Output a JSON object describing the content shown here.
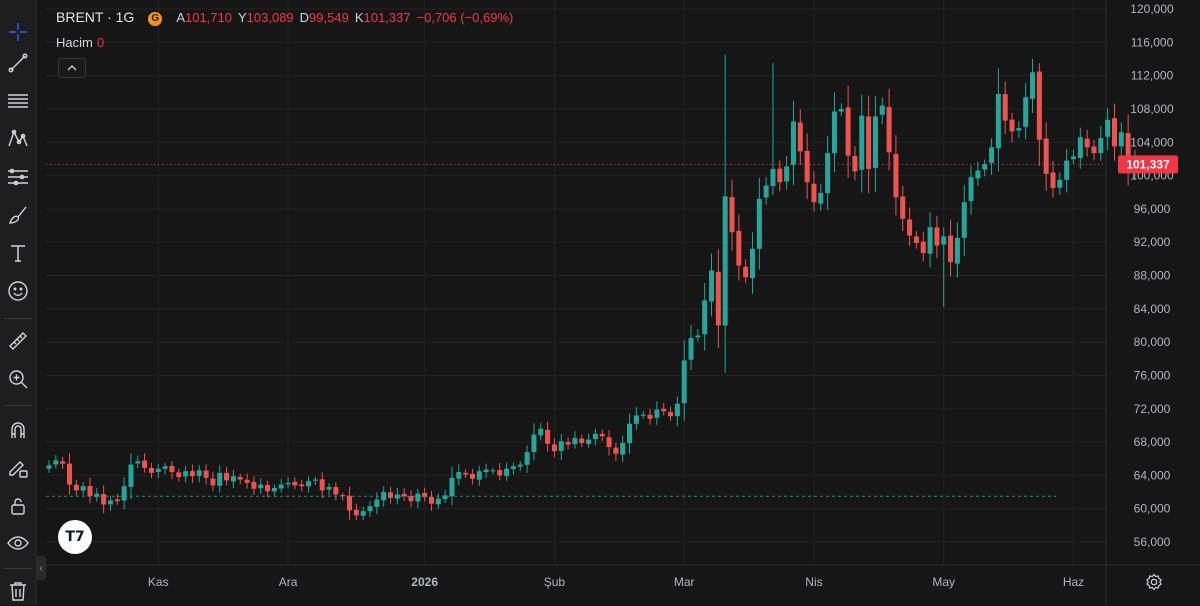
{
  "legend": {
    "symbol": "BRENT · 1G",
    "open_label": "A",
    "open_value": "101,710",
    "high_label": "Y",
    "high_value": "103,089",
    "low_label": "D",
    "low_value": "99,549",
    "close_label": "K",
    "close_value": "101,337",
    "change": "−0,706 (−0,69%)"
  },
  "volume": {
    "label": "Hacim",
    "value": "0"
  },
  "icons": {
    "exchange": "G-icon",
    "toolbar": [
      "crosshair-icon",
      "trend-line-icon",
      "fib-icon",
      "pattern-icon",
      "forecast-icon",
      "brush-icon",
      "text-icon",
      "emoji-icon",
      "ruler-icon",
      "zoom-icon",
      "magnet-icon",
      "lock-draw-icon",
      "lock-icon",
      "eye-icon",
      "trash-icon"
    ]
  },
  "colors": {
    "up": "#26a69a",
    "down": "#ef5350",
    "price_line": "#f23645",
    "background": "#161616"
  },
  "logo_text": "T7",
  "chart_data": {
    "type": "candlestick",
    "ylim": [
      53000,
      121000
    ],
    "y_ticks": [
      {
        "v": 120000,
        "label": "120,000"
      },
      {
        "v": 116000,
        "label": "116,000"
      },
      {
        "v": 112000,
        "label": "112,000"
      },
      {
        "v": 108000,
        "label": "108,000"
      },
      {
        "v": 104000,
        "label": "104,000"
      },
      {
        "v": 100000,
        "label": "100,000"
      },
      {
        "v": 96000,
        "label": "96,000"
      },
      {
        "v": 92000,
        "label": "92,000"
      },
      {
        "v": 88000,
        "label": "88,000"
      },
      {
        "v": 84000,
        "label": "84,000"
      },
      {
        "v": 80000,
        "label": "80,000"
      },
      {
        "v": 76000,
        "label": "76,000"
      },
      {
        "v": 72000,
        "label": "72,000"
      },
      {
        "v": 68000,
        "label": "68,000"
      },
      {
        "v": 64000,
        "label": "64,000"
      },
      {
        "v": 60000,
        "label": "60,000"
      },
      {
        "v": 56000,
        "label": "56,000"
      }
    ],
    "x_labels": [
      {
        "i": 16,
        "label": "Kas"
      },
      {
        "i": 35,
        "label": "Ara"
      },
      {
        "i": 55,
        "label": "2026"
      },
      {
        "i": 74,
        "label": "Şub"
      },
      {
        "i": 93,
        "label": "Mar"
      },
      {
        "i": 112,
        "label": "Nis"
      },
      {
        "i": 131,
        "label": "May"
      },
      {
        "i": 150,
        "label": "Haz"
      }
    ],
    "current_price": 101337,
    "current_price_label": "101,337",
    "baseline_price": 61500,
    "closes": [
      65200,
      65800,
      65400,
      62900,
      62200,
      62700,
      61500,
      61800,
      60500,
      61000,
      60900,
      62700,
      65300,
      65700,
      64900,
      64300,
      64800,
      65100,
      64400,
      63800,
      64500,
      63900,
      64600,
      63700,
      62800,
      64300,
      63400,
      63900,
      63500,
      63100,
      62400,
      62900,
      62100,
      62500,
      62900,
      63100,
      62800,
      62700,
      63300,
      63500,
      62200,
      62600,
      61700,
      61500,
      59800,
      59200,
      59700,
      60300,
      61100,
      62000,
      61300,
      61700,
      61500,
      60900,
      61800,
      61400,
      60600,
      61200,
      61600,
      63700,
      64400,
      64100,
      63600,
      64500,
      64700,
      64600,
      64000,
      64800,
      65100,
      65300,
      66800,
      68900,
      69600,
      67800,
      66900,
      68100,
      67700,
      68500,
      67900,
      68300,
      69000,
      68700,
      67400,
      66600,
      67900,
      70200,
      71200,
      71300,
      70800,
      71900,
      71700,
      71100,
      72600,
      77800,
      80500,
      80800,
      85000,
      88600,
      82000,
      97500,
      93200,
      89200,
      87800,
      91200,
      97200,
      98800,
      100800,
      99200,
      101100,
      106500,
      102900,
      99200,
      96800,
      97900,
      102700,
      107700,
      108000,
      102400,
      100500,
      107200,
      100800,
      107100,
      108400,
      102800,
      97400,
      94800,
      92800,
      91900,
      90700,
      93800,
      91600,
      92700,
      89600,
      92500,
      96800,
      99800,
      100600,
      101400,
      103400,
      109800,
      106600,
      105300,
      105700,
      109400,
      112400,
      104300,
      100200,
      98500,
      99500,
      101800,
      102300,
      104600,
      103400,
      102700,
      104500,
      106700,
      103500,
      105200,
      101000,
      101337
    ]
  }
}
